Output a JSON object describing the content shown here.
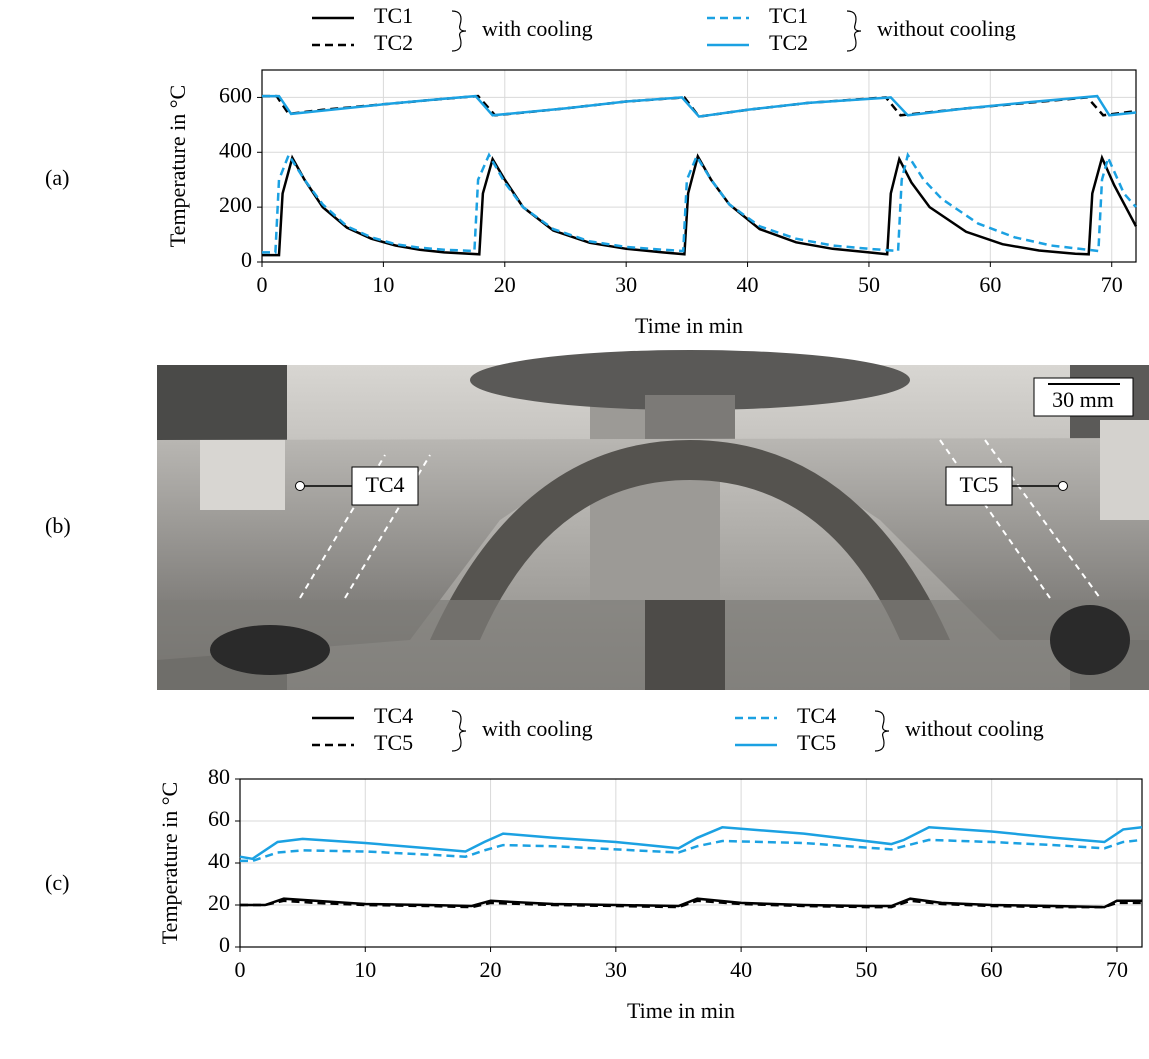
{
  "panel_labels": [
    "(a)",
    "(b)",
    "(c)"
  ],
  "photo": {
    "labels": {
      "tc4": "TC4",
      "tc5": "TC5",
      "scale_bar": "30 mm"
    }
  },
  "chart_data": [
    {
      "type": "line",
      "x_label": "Time in min",
      "y_label": "Temperature in °C",
      "xlim": [
        0,
        72
      ],
      "xticks": [
        0,
        10,
        20,
        30,
        40,
        50,
        60,
        70
      ],
      "ylim": [
        0,
        700
      ],
      "yticks": [
        0,
        200,
        400,
        600
      ],
      "grid": true,
      "series_groups": [
        {
          "label": "with cooling",
          "series": [
            {
              "name": "TC1",
              "color": "#000000",
              "dash": false,
              "x": [
                0,
                1.4,
                1.7,
                2.5,
                3.5,
                5,
                7,
                9,
                11,
                13,
                15,
                17.9,
                18.2,
                19.0,
                20,
                21.5,
                24,
                27,
                30,
                33,
                34.8,
                35.1,
                35.9,
                37,
                38.5,
                41,
                44,
                47,
                50,
                51.5,
                51.8,
                52.5,
                53.5,
                55,
                58,
                61,
                64,
                67,
                68.1,
                68.4,
                69.2,
                70.2,
                72
              ],
              "values": [
                25,
                25,
                250,
                380,
                300,
                200,
                125,
                85,
                60,
                45,
                35,
                28,
                250,
                375,
                300,
                200,
                115,
                70,
                48,
                35,
                28,
                250,
                385,
                300,
                210,
                120,
                72,
                48,
                35,
                28,
                250,
                375,
                290,
                200,
                110,
                65,
                42,
                30,
                28,
                250,
                380,
                280,
                130
              ]
            },
            {
              "name": "TC2",
              "color": "#000000",
              "dash": true,
              "x": [
                0,
                1.2,
                2.2,
                5,
                10,
                15,
                17.8,
                19.2,
                25,
                30,
                34.8,
                36,
                40,
                45,
                51.4,
                52.6,
                58,
                63,
                68,
                69.3,
                72
              ],
              "values": [
                605,
                605,
                540,
                555,
                575,
                595,
                605,
                535,
                560,
                585,
                600,
                530,
                555,
                580,
                600,
                535,
                560,
                580,
                600,
                535,
                550
              ]
            }
          ]
        },
        {
          "label": "without cooling",
          "series": [
            {
              "name": "TC1",
              "color": "#1ba1e2",
              "dash": true,
              "x": [
                0,
                1.1,
                1.4,
                2.2,
                3.5,
                5,
                7,
                9,
                11,
                13,
                15,
                17.5,
                17.8,
                18.7,
                20,
                21.5,
                24,
                27,
                30,
                33,
                34.7,
                35.0,
                35.8,
                37,
                38.5,
                41,
                44,
                47,
                50,
                52.4,
                52.7,
                53.2,
                54.5,
                56,
                59,
                62,
                65,
                68.9,
                69.2,
                69.7,
                71,
                72
              ],
              "values": [
                35,
                35,
                300,
                390,
                300,
                210,
                130,
                90,
                65,
                52,
                45,
                40,
                300,
                390,
                290,
                200,
                120,
                75,
                55,
                45,
                40,
                300,
                385,
                300,
                210,
                130,
                85,
                60,
                48,
                40,
                300,
                390,
                300,
                230,
                140,
                90,
                60,
                40,
                300,
                380,
                250,
                200
              ]
            },
            {
              "name": "TC2",
              "color": "#1ba1e2",
              "dash": false,
              "x": [
                0,
                1.4,
                2.4,
                5,
                10,
                15,
                17.6,
                19.0,
                25,
                30,
                34.6,
                36,
                40,
                45,
                51.8,
                53.2,
                58,
                63,
                68.8,
                69.8,
                72
              ],
              "values": [
                605,
                605,
                540,
                552,
                575,
                595,
                605,
                535,
                560,
                585,
                600,
                530,
                555,
                580,
                600,
                535,
                560,
                582,
                605,
                535,
                545
              ]
            }
          ]
        }
      ]
    },
    {
      "type": "line",
      "x_label": "Time in min",
      "y_label": "Temperature in °C",
      "xlim": [
        0,
        72
      ],
      "xticks": [
        0,
        10,
        20,
        30,
        40,
        50,
        60,
        70
      ],
      "ylim": [
        0,
        80
      ],
      "yticks": [
        0,
        20,
        40,
        60,
        80
      ],
      "grid": true,
      "series_groups": [
        {
          "label": "with cooling",
          "series": [
            {
              "name": "TC4",
              "color": "#000000",
              "dash": false,
              "x": [
                0,
                2,
                3.5,
                6,
                10,
                15,
                18.5,
                20,
                25,
                30,
                35,
                36.5,
                40,
                45,
                50,
                52,
                53.5,
                56,
                60,
                65,
                69,
                70,
                72
              ],
              "values": [
                20,
                20,
                23,
                22,
                20.5,
                20,
                19.5,
                22,
                20.5,
                20,
                19.5,
                23,
                21,
                20,
                19.5,
                19.5,
                23,
                21,
                20,
                19.5,
                19,
                22,
                22
              ]
            },
            {
              "name": "TC5",
              "color": "#000000",
              "dash": true,
              "x": [
                0,
                2,
                3.5,
                6,
                10,
                15,
                18.5,
                20,
                25,
                30,
                35,
                36.5,
                40,
                45,
                50,
                52,
                53.5,
                56,
                60,
                65,
                69,
                70,
                72
              ],
              "values": [
                20,
                20,
                22,
                21,
                20,
                19.5,
                19,
                21,
                20,
                19.5,
                19,
                22,
                20.5,
                19.5,
                19,
                19,
                22,
                20.5,
                19.5,
                19,
                19,
                21,
                21
              ]
            }
          ]
        },
        {
          "label": "without cooling",
          "series": [
            {
              "name": "TC4",
              "color": "#1ba1e2",
              "dash": true,
              "x": [
                0,
                1,
                3,
                5,
                10,
                15,
                18,
                19.5,
                21,
                25,
                30,
                35,
                36.5,
                38.5,
                45,
                52,
                53,
                55,
                60,
                65,
                69,
                70.5,
                72
              ],
              "values": [
                41,
                41,
                45,
                46,
                45.5,
                44,
                43,
                46,
                48.5,
                48,
                46.5,
                45,
                48,
                50.5,
                49.5,
                46.5,
                48,
                51,
                50,
                48.5,
                47,
                50,
                51
              ]
            },
            {
              "name": "TC5",
              "color": "#1ba1e2",
              "dash": false,
              "x": [
                0,
                1,
                3,
                5,
                10,
                15,
                18,
                19.5,
                21,
                25,
                30,
                35,
                36.5,
                38.5,
                45,
                52,
                53,
                55,
                60,
                65,
                69,
                70.5,
                72
              ],
              "values": [
                43,
                42,
                50,
                51.5,
                49.5,
                47,
                45.5,
                50,
                54,
                52,
                50,
                47,
                52,
                57,
                54,
                49,
                51,
                57,
                55,
                52,
                50,
                56,
                57
              ]
            }
          ]
        }
      ]
    }
  ]
}
